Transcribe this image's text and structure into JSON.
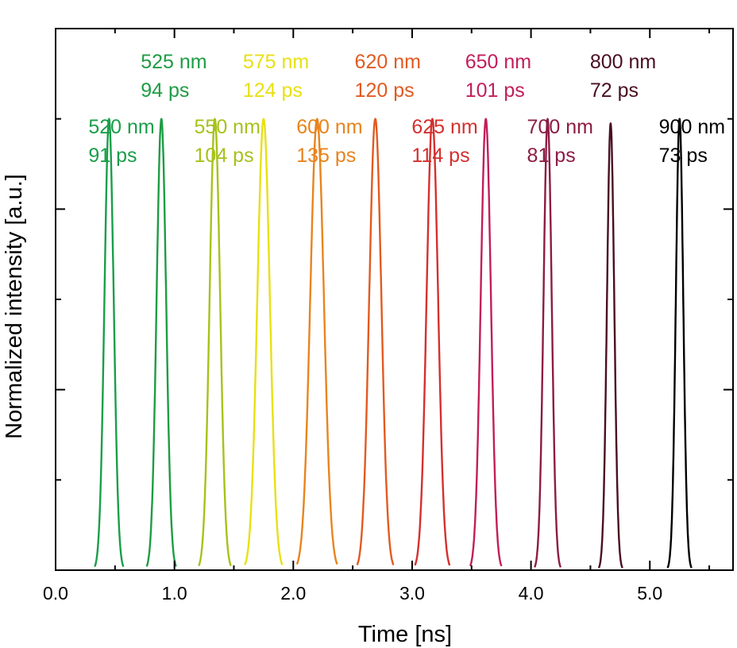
{
  "chart_data": {
    "type": "line",
    "title": "",
    "xlabel": "Time [ns]",
    "ylabel": "Normalized intensity [a.u.]",
    "xlim": [
      0.0,
      5.7
    ],
    "ylim": [
      0.0,
      1.2
    ],
    "x_ticks": [
      "0.0",
      "1.0",
      "2.0",
      "3.0",
      "4.0",
      "5.0"
    ],
    "y_tick_labels": "none",
    "grid": false,
    "series": [
      {
        "name": "520 nm",
        "fwhm": "91 ps",
        "center": 0.45,
        "peak": 1.0,
        "color": "#1a9e4a",
        "wavelength_label": "520 nm",
        "fwhm_label": "91 ps",
        "label_row": "lower"
      },
      {
        "name": "525 nm",
        "fwhm": "94 ps",
        "center": 0.89,
        "peak": 1.0,
        "color": "#1e9c44",
        "wavelength_label": "525 nm",
        "fwhm_label": "94 ps",
        "label_row": "upper"
      },
      {
        "name": "550 nm",
        "fwhm": "104 ps",
        "center": 1.34,
        "peak": 1.0,
        "color": "#a6c21a",
        "wavelength_label": "550 nm",
        "fwhm_label": "104 ps",
        "label_row": "lower"
      },
      {
        "name": "575 nm",
        "fwhm": "124 ps",
        "center": 1.75,
        "peak": 1.0,
        "color": "#e8e012",
        "wavelength_label": "575 nm",
        "fwhm_label": "124 ps",
        "label_row": "upper"
      },
      {
        "name": "600 nm",
        "fwhm": "135 ps",
        "center": 2.2,
        "peak": 1.0,
        "color": "#e8841e",
        "wavelength_label": "600 nm",
        "fwhm_label": "135 ps",
        "label_row": "lower"
      },
      {
        "name": "620 nm",
        "fwhm": "120 ps",
        "center": 2.69,
        "peak": 1.0,
        "color": "#e25a20",
        "wavelength_label": "620 nm",
        "fwhm_label": "120 ps",
        "label_row": "upper"
      },
      {
        "name": "625 nm",
        "fwhm": "114 ps",
        "center": 3.17,
        "peak": 1.0,
        "color": "#d4302e",
        "wavelength_label": "625 nm",
        "fwhm_label": "114 ps",
        "label_row": "lower"
      },
      {
        "name": "650 nm",
        "fwhm": "101 ps",
        "center": 3.62,
        "peak": 1.0,
        "color": "#c21e5a",
        "wavelength_label": "650 nm",
        "fwhm_label": "101 ps",
        "label_row": "upper"
      },
      {
        "name": "700 nm",
        "fwhm": "81 ps",
        "center": 4.14,
        "peak": 1.0,
        "color": "#8c1c44",
        "wavelength_label": "700 nm",
        "fwhm_label": "81 ps",
        "label_row": "lower"
      },
      {
        "name": "800 nm",
        "fwhm": "72 ps",
        "center": 4.67,
        "peak": 0.99,
        "color": "#4a0f22",
        "wavelength_label": "800 nm",
        "fwhm_label": "72 ps",
        "label_row": "upper"
      },
      {
        "name": "900 nm",
        "fwhm": "73 ps",
        "center": 5.25,
        "peak": 1.0,
        "color": "#000000",
        "wavelength_label": "900 nm",
        "fwhm_label": "73 ps",
        "label_row": "lower"
      }
    ]
  }
}
